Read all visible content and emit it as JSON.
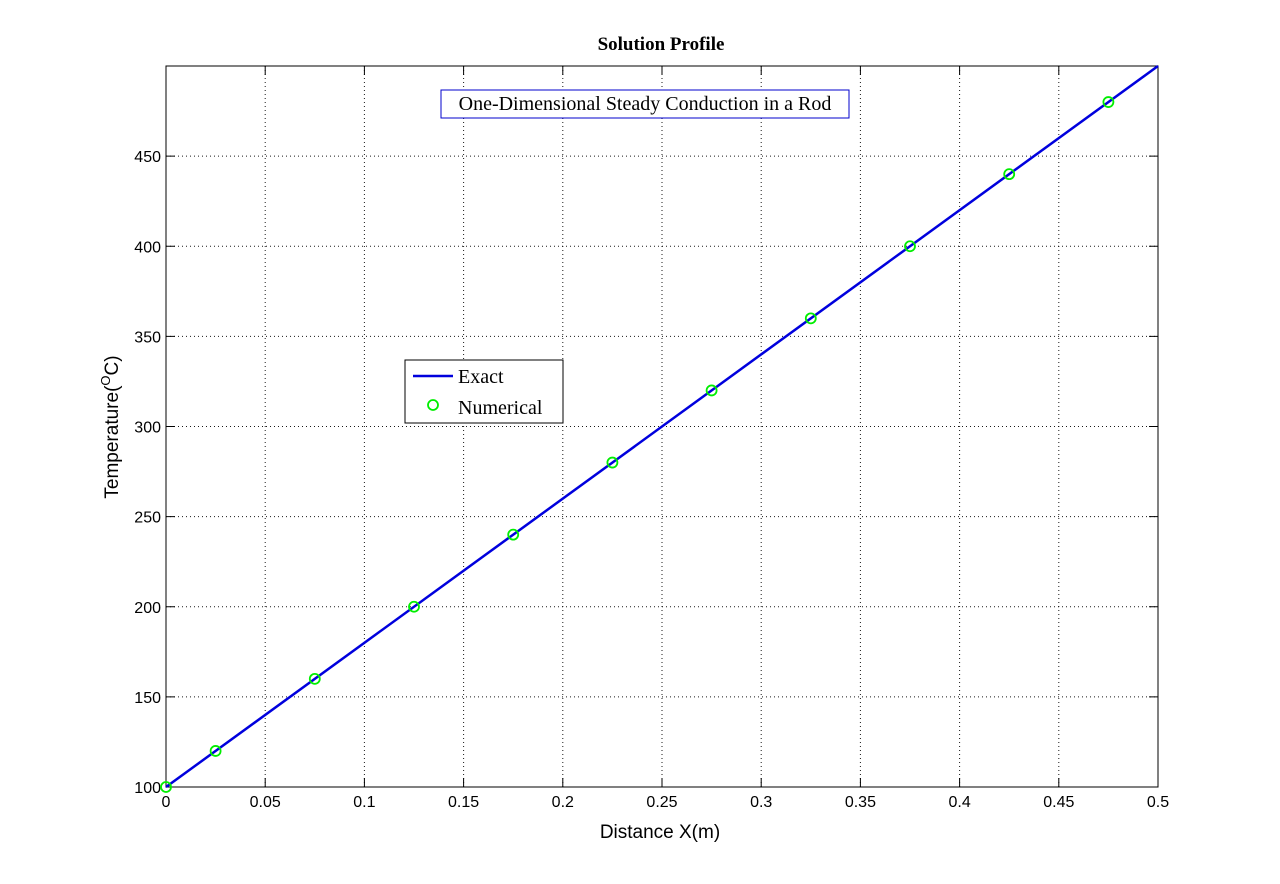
{
  "chart_data": {
    "type": "line",
    "title": "Solution Profile",
    "annotation": "One-Dimensional Steady Conduction in a Rod",
    "xlabel": "Distance X(m)",
    "ylabel_main": "Temperature(",
    "ylabel_sup": "O",
    "ylabel_end": "C)",
    "xlim": [
      0,
      0.5
    ],
    "ylim": [
      100,
      500
    ],
    "xticks": [
      0,
      0.05,
      0.1,
      0.15,
      0.2,
      0.25,
      0.3,
      0.35,
      0.4,
      0.45,
      0.5
    ],
    "xtick_labels": [
      "0",
      "0.05",
      "0.1",
      "0.15",
      "0.2",
      "0.25",
      "0.3",
      "0.35",
      "0.4",
      "0.45",
      "0.5"
    ],
    "yticks": [
      100,
      150,
      200,
      250,
      300,
      350,
      400,
      450
    ],
    "ytick_labels": [
      "100",
      "150",
      "200",
      "250",
      "300",
      "350",
      "400",
      "450"
    ],
    "grid": true,
    "legend_placement": "center-left",
    "series": [
      {
        "name": "Exact",
        "style": "line",
        "color": "#0000dd",
        "x": [
          0,
          0.5
        ],
        "y": [
          100,
          500
        ]
      },
      {
        "name": "Numerical",
        "style": "circle-marker",
        "color": "#00ee00",
        "x": [
          0,
          0.025,
          0.075,
          0.125,
          0.175,
          0.225,
          0.275,
          0.325,
          0.375,
          0.425,
          0.475
        ],
        "y": [
          100,
          120,
          160,
          200,
          240,
          280,
          320,
          360,
          400,
          440,
          480
        ]
      }
    ]
  }
}
